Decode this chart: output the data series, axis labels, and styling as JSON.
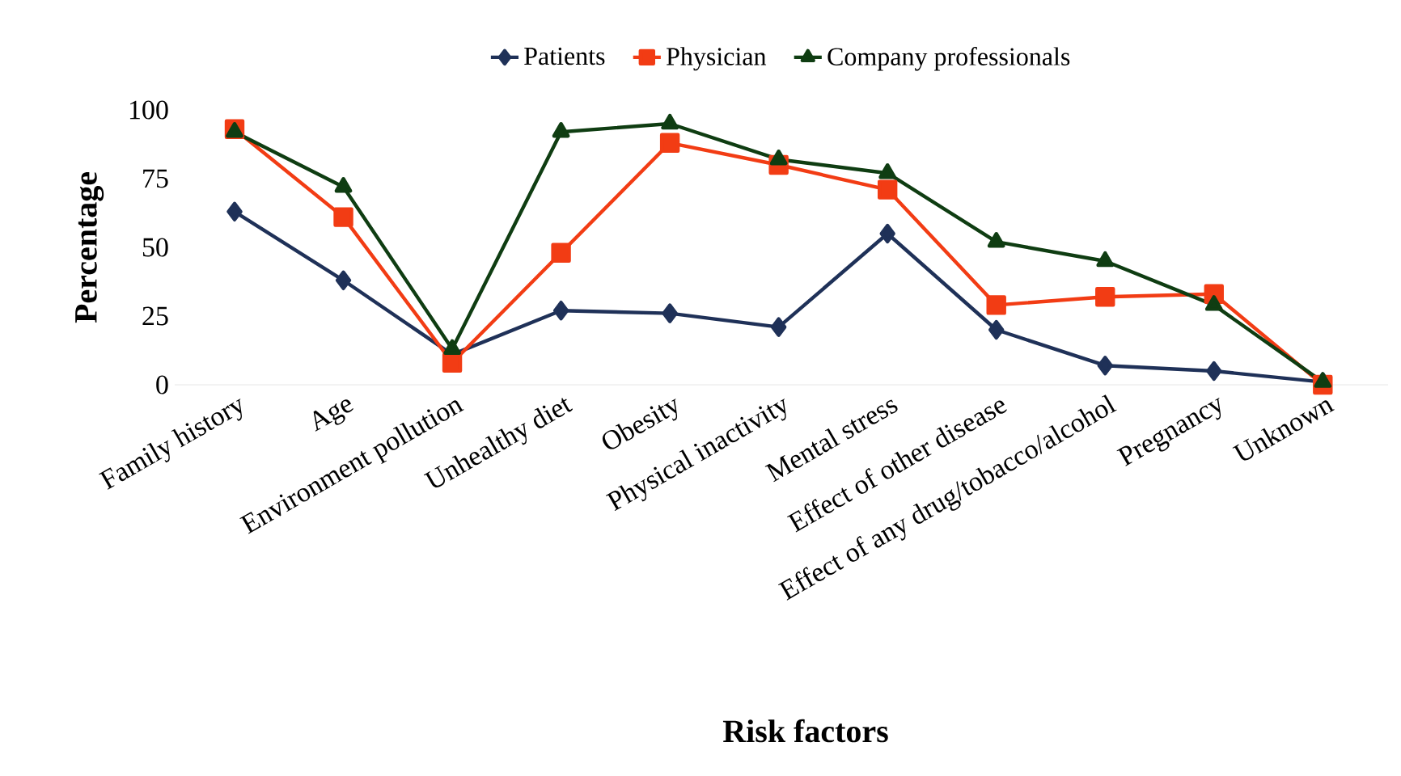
{
  "chart_data": {
    "type": "line",
    "xlabel": "Risk factors",
    "ylabel": "Percentage",
    "categories": [
      "Family history",
      "Age",
      "Environment pollution",
      "Unhealthy diet",
      "Obesity",
      "Physical inactivity",
      "Mental stress",
      "Effect of other disease",
      "Effect of any drug/tobacco/alcohol",
      "Pregnancy",
      "Unknown"
    ],
    "series": [
      {
        "name": "Patients",
        "color": "#1f3158",
        "marker": "diamond",
        "values": [
          63,
          38,
          11,
          27,
          26,
          21,
          55,
          20,
          7,
          5,
          1
        ]
      },
      {
        "name": "Physician",
        "color": "#f23c14",
        "marker": "square",
        "values": [
          93,
          61,
          8,
          48,
          88,
          80,
          71,
          29,
          32,
          33,
          0
        ]
      },
      {
        "name": "Company professionals",
        "color": "#0f3d12",
        "marker": "triangle",
        "values": [
          92,
          72,
          13,
          92,
          95,
          82,
          77,
          52,
          45,
          29,
          1
        ]
      }
    ],
    "ylim": [
      0,
      100
    ],
    "yticks": [
      0,
      25,
      50,
      75,
      100
    ],
    "grid": false,
    "legend": "top"
  }
}
